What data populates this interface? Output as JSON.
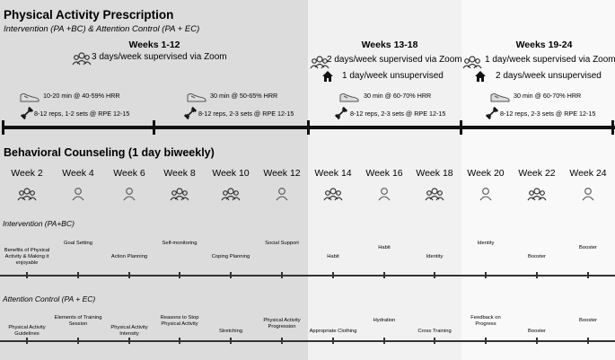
{
  "title": "Physical Activity Prescription",
  "subtitle": "Intervention (PA +BC) & Attention Control (PA + EC)",
  "phases": [
    {
      "heading": "Weeks 1-12",
      "supervised": "3 days/week supervised via Zoom",
      "unsupervised": "",
      "aerobic": "10-20 min @ 40-59% HRR",
      "strength": "8-12 reps, 1-2 sets @ RPE 12-15",
      "aerobic2": "30 min @ 50-65% HRR",
      "strength2": "8-12 reps, 2-3 sets @ RPE 12-15"
    },
    {
      "heading": "Weeks 13-18",
      "supervised": "2 days/week supervised via Zoom",
      "unsupervised": "1 day/week unsupervised",
      "aerobic": "30 min @ 60-70% HRR",
      "strength": "8-12 reps, 2-3 sets @ RPE 12-15"
    },
    {
      "heading": "Weeks 19-24",
      "supervised": "1 day/week supervised via Zoom",
      "unsupervised": "2 days/week unsupervised",
      "aerobic": "30 min @ 60-70% HRR",
      "strength": "8-12 reps, 2-3 sets @ RPE 12-15"
    }
  ],
  "counseling_title": "Behavioral Counseling (1 day biweekly)",
  "weeks": [
    {
      "label": "Week 2",
      "icon": "group-icon"
    },
    {
      "label": "Week 4",
      "icon": "person-icon"
    },
    {
      "label": "Week 6",
      "icon": "person-icon"
    },
    {
      "label": "Week 8",
      "icon": "group-icon"
    },
    {
      "label": "Week 10",
      "icon": "group-icon"
    },
    {
      "label": "Week 12",
      "icon": "person-icon"
    },
    {
      "label": "Week 14",
      "icon": "group-icon"
    },
    {
      "label": "Week 16",
      "icon": "person-icon"
    },
    {
      "label": "Week 18",
      "icon": "group-icon"
    },
    {
      "label": "Week 20",
      "icon": "person-icon"
    },
    {
      "label": "Week 22",
      "icon": "group-icon"
    },
    {
      "label": "Week 24",
      "icon": "person-icon"
    }
  ],
  "intervention_label": "Intervention (PA+BC)",
  "intervention_topics": [
    "Benefits of Physical\nActivity & Making it\nenjoyable",
    "Goal Setting",
    "Action Planning",
    "Self-monitoring",
    "Coping Planning",
    "Social Support",
    "Habit",
    "Habit",
    "Identity",
    "Identity",
    "Booster",
    "Booster"
  ],
  "control_label": "Attention Control (PA + EC)",
  "control_topics": [
    "Physical Activity\nGuidelines",
    "Elements of Training\nSession",
    "Physical Activity\nIntensity",
    "Reasons to Stop\nPhysical Activity",
    "Stretching",
    "Physical Activity\nProgression",
    "Appropriate Clothing",
    "Hydration",
    "Cross Training",
    "Feedback on\nProgress",
    "Booster",
    "Booster"
  ]
}
